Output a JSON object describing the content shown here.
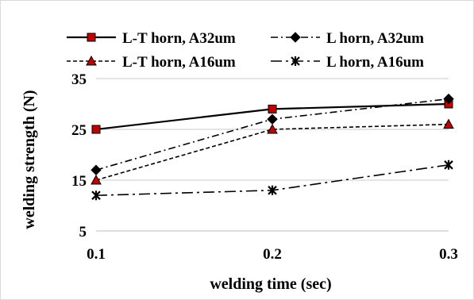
{
  "chart_data": {
    "type": "line",
    "title": "",
    "xlabel": "welding time (sec)",
    "ylabel": "welding strength (N)",
    "x": [
      0.1,
      0.2,
      0.3
    ],
    "x_tick_labels": [
      "0.1",
      "0.2",
      "0.3"
    ],
    "ylim": [
      5,
      35
    ],
    "y_ticks": [
      5,
      15,
      25,
      35
    ],
    "grid": "horizontal",
    "legend_position": "top",
    "series": [
      {
        "name": "L-T horn, A32um",
        "values": [
          25,
          29,
          30
        ],
        "line_style": "solid",
        "marker": "square",
        "marker_color": "#c00000",
        "line_color": "#000000"
      },
      {
        "name": "L horn, A32um",
        "values": [
          17,
          27,
          31
        ],
        "line_style": "dash-dot",
        "marker": "diamond",
        "marker_color": "#000000",
        "line_color": "#000000"
      },
      {
        "name": "L-T horn, A16um",
        "values": [
          15,
          25,
          26
        ],
        "line_style": "dashed",
        "marker": "triangle",
        "marker_color": "#c00000",
        "line_color": "#000000"
      },
      {
        "name": "L horn, A16um",
        "values": [
          12,
          13,
          18
        ],
        "line_style": "long-dash-dot",
        "marker": "x",
        "marker_color": "#000000",
        "line_color": "#000000"
      }
    ]
  }
}
